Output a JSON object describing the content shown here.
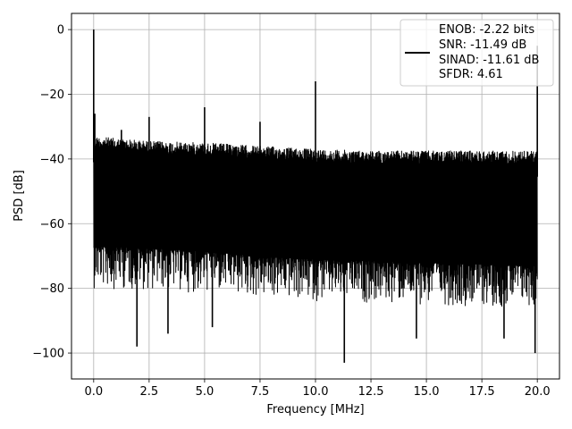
{
  "chart_data": {
    "type": "line",
    "title": "",
    "xlabel": "Frequency [MHz]",
    "ylabel": "PSD [dB]",
    "xlim": [
      -1,
      21
    ],
    "ylim": [
      -108,
      5
    ],
    "xticks": [
      0,
      2.5,
      5,
      7.5,
      10,
      12.5,
      15,
      17.5,
      20
    ],
    "xtick_labels": [
      "0.0",
      "2.5",
      "5.0",
      "7.5",
      "10.0",
      "12.5",
      "15.0",
      "17.5",
      "20.0"
    ],
    "yticks": [
      0,
      -20,
      -40,
      -60,
      -80,
      -100
    ],
    "ytick_labels": [
      "0",
      "−20",
      "−40",
      "−60",
      "−80",
      "−100"
    ],
    "grid": true,
    "legend_position": "top-right",
    "series_color": "#000000",
    "legend": [
      "ENOB: -2.22 bits",
      "SNR: -11.49 dB",
      "SINAD: -11.61 dB",
      "SFDR: 4.61"
    ],
    "noise_envelope": {
      "x": [
        0,
        2.5,
        5,
        7.5,
        10,
        12.5,
        15,
        17.5,
        20
      ],
      "upper": [
        -33,
        -34.5,
        -35,
        -36,
        -37,
        -37.5,
        -37.5,
        -37.5,
        -37.5
      ],
      "lower": [
        -67,
        -67.5,
        -68.5,
        -70,
        -71,
        -71.5,
        -72,
        -72.5,
        -73
      ]
    },
    "peaks": [
      {
        "x": 0.0,
        "y": 0
      },
      {
        "x": 0.05,
        "y": -26
      },
      {
        "x": 1.25,
        "y": -31
      },
      {
        "x": 2.5,
        "y": -27
      },
      {
        "x": 5.0,
        "y": -24
      },
      {
        "x": 7.5,
        "y": -28.5
      },
      {
        "x": 10.0,
        "y": -16
      },
      {
        "x": 20.0,
        "y": -5
      }
    ],
    "dips": [
      {
        "x": 1.95,
        "y": -98
      },
      {
        "x": 3.35,
        "y": -94
      },
      {
        "x": 5.35,
        "y": -92
      },
      {
        "x": 11.3,
        "y": -103
      },
      {
        "x": 14.55,
        "y": -95.5
      },
      {
        "x": 18.5,
        "y": -95.5
      },
      {
        "x": 19.9,
        "y": -100
      }
    ]
  }
}
